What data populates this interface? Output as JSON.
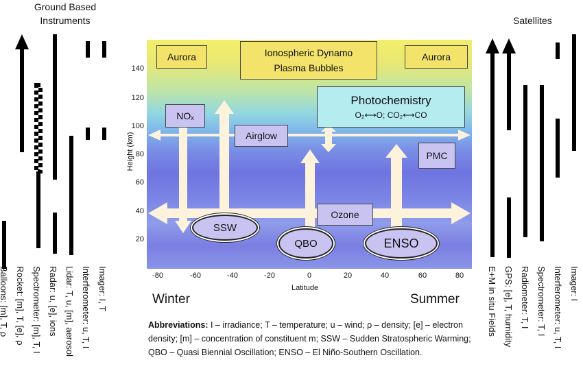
{
  "left_title": [
    "Ground Based",
    "Instruments"
  ],
  "right_title": "Satellites",
  "left_instruments": [
    "Balloons: [m], T, ρ",
    "Rocket: [m], T, [e], ρ",
    "Spectrometer: [m], T, I",
    "Radar: u, [e], ions",
    "Lidar: T, u, [m], aerosol",
    "Interferometer: u, T, I",
    "Imager: I, T"
  ],
  "right_instruments": [
    "E+M in situ Fields",
    "GPS: [e], T, humidity",
    "Radiometer: T, I",
    "Spectrometer: T, I",
    "Interferometer: u, T, I",
    "Imager: I"
  ],
  "boxes": {
    "aurora_left": "Aurora",
    "aurora_right": "Aurora",
    "dynamo_line1": "Ionospheric Dynamo",
    "dynamo_line2": "Plasma Bubbles",
    "photochem_title": "Photochemistry",
    "photochem_sub": "O₂⟷O; CO₂⟷CO",
    "nox": "NOₓ",
    "airglow": "Airglow",
    "pmc": "PMC",
    "ozone": "Ozone",
    "ssw": "SSW",
    "qbo": "QBO",
    "enso": "ENSO"
  },
  "axes": {
    "ylabel": "Height (km)",
    "xlabel": "Latitude",
    "yticks": [
      "140",
      "120",
      "100",
      "80",
      "60",
      "40",
      "20"
    ],
    "xticks": [
      "-80",
      "-60",
      "-40",
      "-20",
      "0",
      "20",
      "40",
      "60",
      "80"
    ]
  },
  "season_left": "Winter",
  "season_right": "Summer",
  "abbrev_label": "Abbreviations:",
  "abbrev_text": " I – irradiance; T – temperature; u – wind; ρ – density; [e] – electron density; [m] – concentration of constituent m; SSW – Sudden Stratospheric Warming; QBO – Quasi Biennial Oscillation; ENSO – El Niño-Southern Oscillation.",
  "colors": {
    "arrow_fill": "#fdf3dc",
    "box_fill": "#c9c3f2",
    "photochem_fill": "#b4ecf0",
    "plot_top": "#f2ec6a",
    "plot_mid": "#8fd6e6",
    "plot_bottom": "#6b66e0"
  }
}
